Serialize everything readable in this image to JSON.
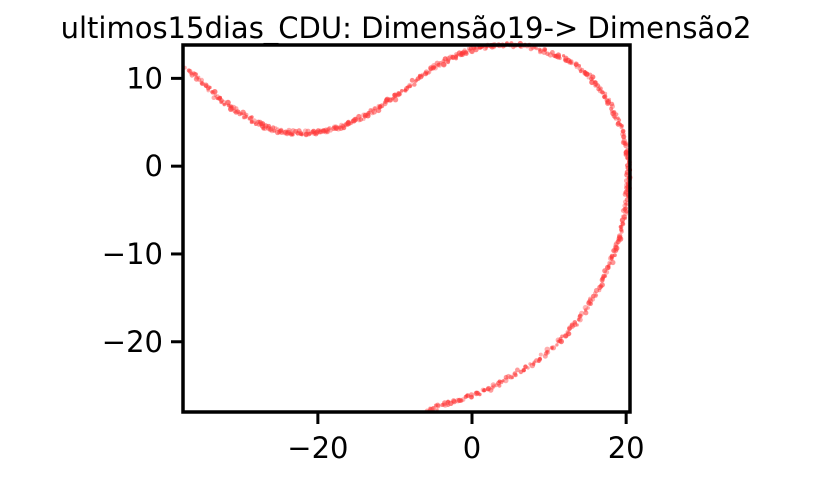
{
  "chart_data": {
    "type": "scatter",
    "title": "ultimos15dias_CDU: Dimensão19-> Dimensão2",
    "xlabel": "",
    "ylabel": "",
    "xlim": [
      -37.5,
      20.5
    ],
    "ylim": [
      -28,
      13.8
    ],
    "xticks": [
      -20,
      0,
      20
    ],
    "yticks": [
      10,
      0,
      -10,
      -20
    ],
    "tick_labels_x": [
      "−20",
      "0",
      "20"
    ],
    "tick_labels_y": [
      "10",
      "0",
      "−10",
      "−20"
    ],
    "grid": false,
    "legend": "none",
    "marker_color": "#ff3b3b",
    "curve": [
      [
        -37,
        11
      ],
      [
        -35,
        9.5
      ],
      [
        -33,
        7.8
      ],
      [
        -31,
        6.5
      ],
      [
        -29,
        5.5
      ],
      [
        -27,
        4.5
      ],
      [
        -25,
        4
      ],
      [
        -23,
        3.8
      ],
      [
        -21,
        3.8
      ],
      [
        -19,
        4
      ],
      [
        -17,
        4.5
      ],
      [
        -15,
        5.2
      ],
      [
        -13,
        6.2
      ],
      [
        -11,
        7.3
      ],
      [
        -9,
        8.5
      ],
      [
        -7,
        10
      ],
      [
        -5,
        11.2
      ],
      [
        -3,
        12.2
      ],
      [
        -1,
        13
      ],
      [
        1,
        13.5
      ],
      [
        3,
        13.8
      ],
      [
        6,
        13.8
      ],
      [
        9,
        13.2
      ],
      [
        12,
        12.3
      ],
      [
        14,
        11.2
      ],
      [
        16,
        9.5
      ],
      [
        17.5,
        7.8
      ],
      [
        18.8,
        5.5
      ],
      [
        19.8,
        3
      ],
      [
        20.3,
        0.5
      ],
      [
        20.3,
        -1.5
      ],
      [
        20.1,
        -3.5
      ],
      [
        19.7,
        -6
      ],
      [
        19,
        -8.5
      ],
      [
        18,
        -11
      ],
      [
        16.6,
        -13.6
      ],
      [
        15,
        -16
      ],
      [
        13,
        -18.4
      ],
      [
        10.7,
        -20.5
      ],
      [
        8.3,
        -22.2
      ],
      [
        5.5,
        -23.8
      ],
      [
        2.5,
        -25.3
      ],
      [
        -0.5,
        -26.3
      ],
      [
        -3.5,
        -27.2
      ],
      [
        -6,
        -27.8
      ]
    ]
  }
}
